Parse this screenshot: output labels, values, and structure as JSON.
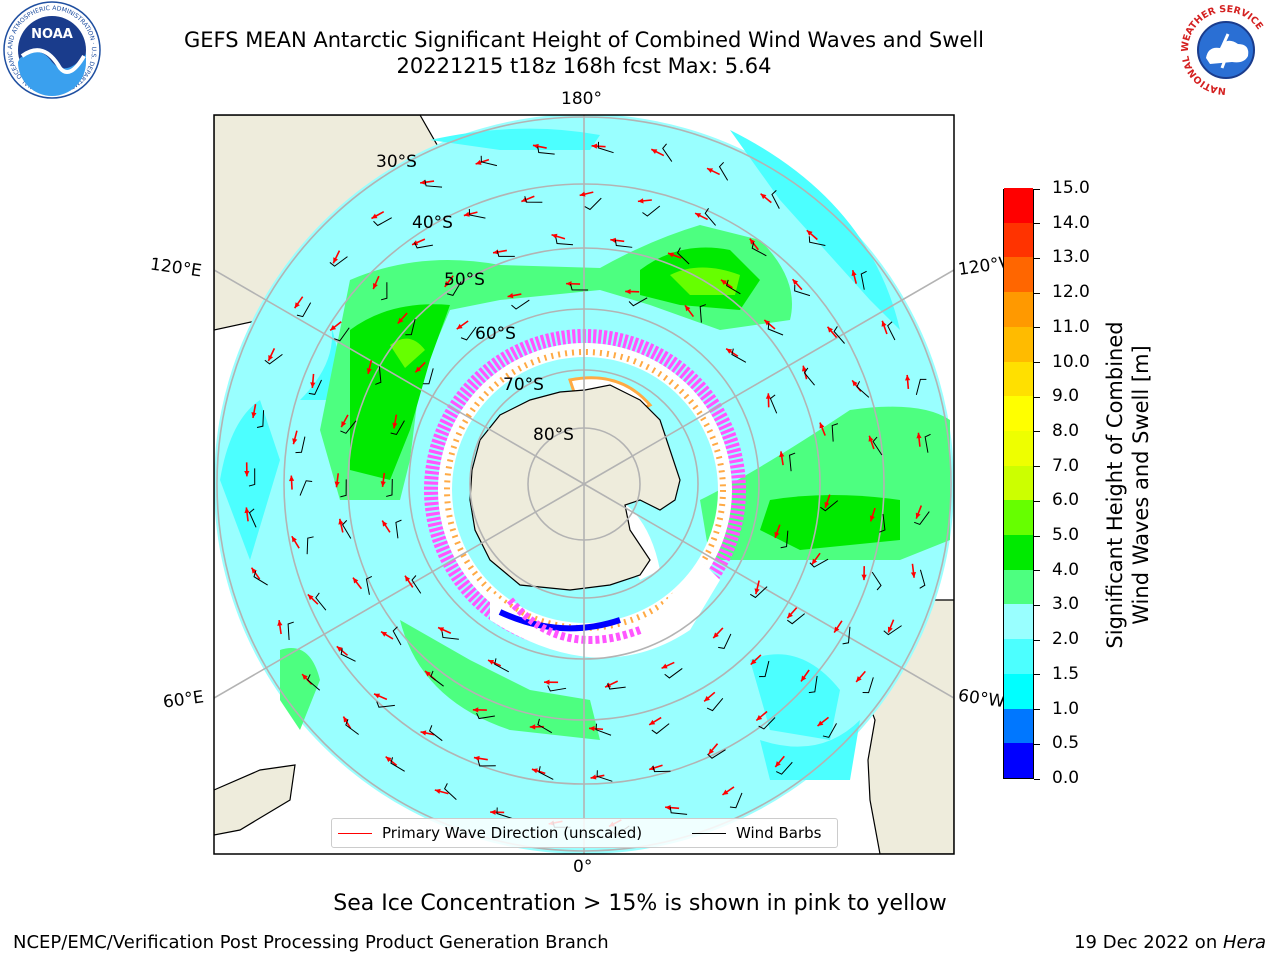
{
  "title": {
    "line1": "GEFS MEAN Antarctic Significant Height of Combined Wind Waves and Swell",
    "line2": "20221215 t18z 168h fcst   Max: 5.64"
  },
  "logos": {
    "left": {
      "name": "noaa-logo",
      "text": "NOAA",
      "ring_text": "NATIONAL OCEANIC AND ATMOSPHERIC ADMINISTRATION · U.S. DEPARTMENT OF COMMERCE"
    },
    "right": {
      "name": "national-weather-service-logo",
      "ring_text": "NATIONAL WEATHER SERVICE"
    }
  },
  "map": {
    "projection": "south-polar-stereographic",
    "lon_labels": {
      "top": "180°",
      "bottom": "0°",
      "upper_left": "120°E",
      "upper_right": "120°W",
      "lower_left": "60°E",
      "lower_right": "60°W"
    },
    "lat_labels": [
      "30°S",
      "40°S",
      "50°S",
      "60°S",
      "70°S",
      "80°S"
    ],
    "legend": {
      "primary_wave": "Primary Wave Direction (unscaled)",
      "wind_barbs": "Wind Barbs",
      "primary_wave_color": "#ff0000",
      "wind_barb_color": "#000000"
    },
    "colors": {
      "land": "#eeecdc",
      "ocean_0_2": "#99ffff",
      "ocean_1_5_2": "#4cffff",
      "ocean_3_4": "#4dff80",
      "ocean_4_5": "#00ea00",
      "ocean_5_6": "#66ff00",
      "ice_pink": "#ff55ff",
      "ice_orange": "#ffaa44",
      "ice_blue": "#0000ff",
      "grid": "#b3b3b3"
    }
  },
  "colorbar": {
    "title_line1": "Significant Height of Combined",
    "title_line2": "Wind Waves and Swell [m]",
    "ticks": [
      "0.0",
      "0.5",
      "1.0",
      "1.5",
      "2.0",
      "3.0",
      "4.0",
      "5.0",
      "6.0",
      "7.0",
      "8.0",
      "9.0",
      "10.0",
      "11.0",
      "12.0",
      "13.0",
      "14.0",
      "15.0"
    ],
    "colors": [
      "#0000ff",
      "#0077ff",
      "#00ffff",
      "#4cffff",
      "#99ffff",
      "#4dff80",
      "#00ea00",
      "#66ff00",
      "#ccff00",
      "#eeff00",
      "#ffff00",
      "#ffe000",
      "#ffbb00",
      "#ff9900",
      "#ff6600",
      "#ff3300",
      "#ff0000"
    ]
  },
  "caption": "Sea Ice Concentration > 15% is shown in pink to yellow",
  "footer": {
    "left": "NCEP/EMC/Verification Post Processing Product Generation Branch",
    "right_prefix": "19 Dec 2022 on ",
    "right_machine": "Hera"
  }
}
